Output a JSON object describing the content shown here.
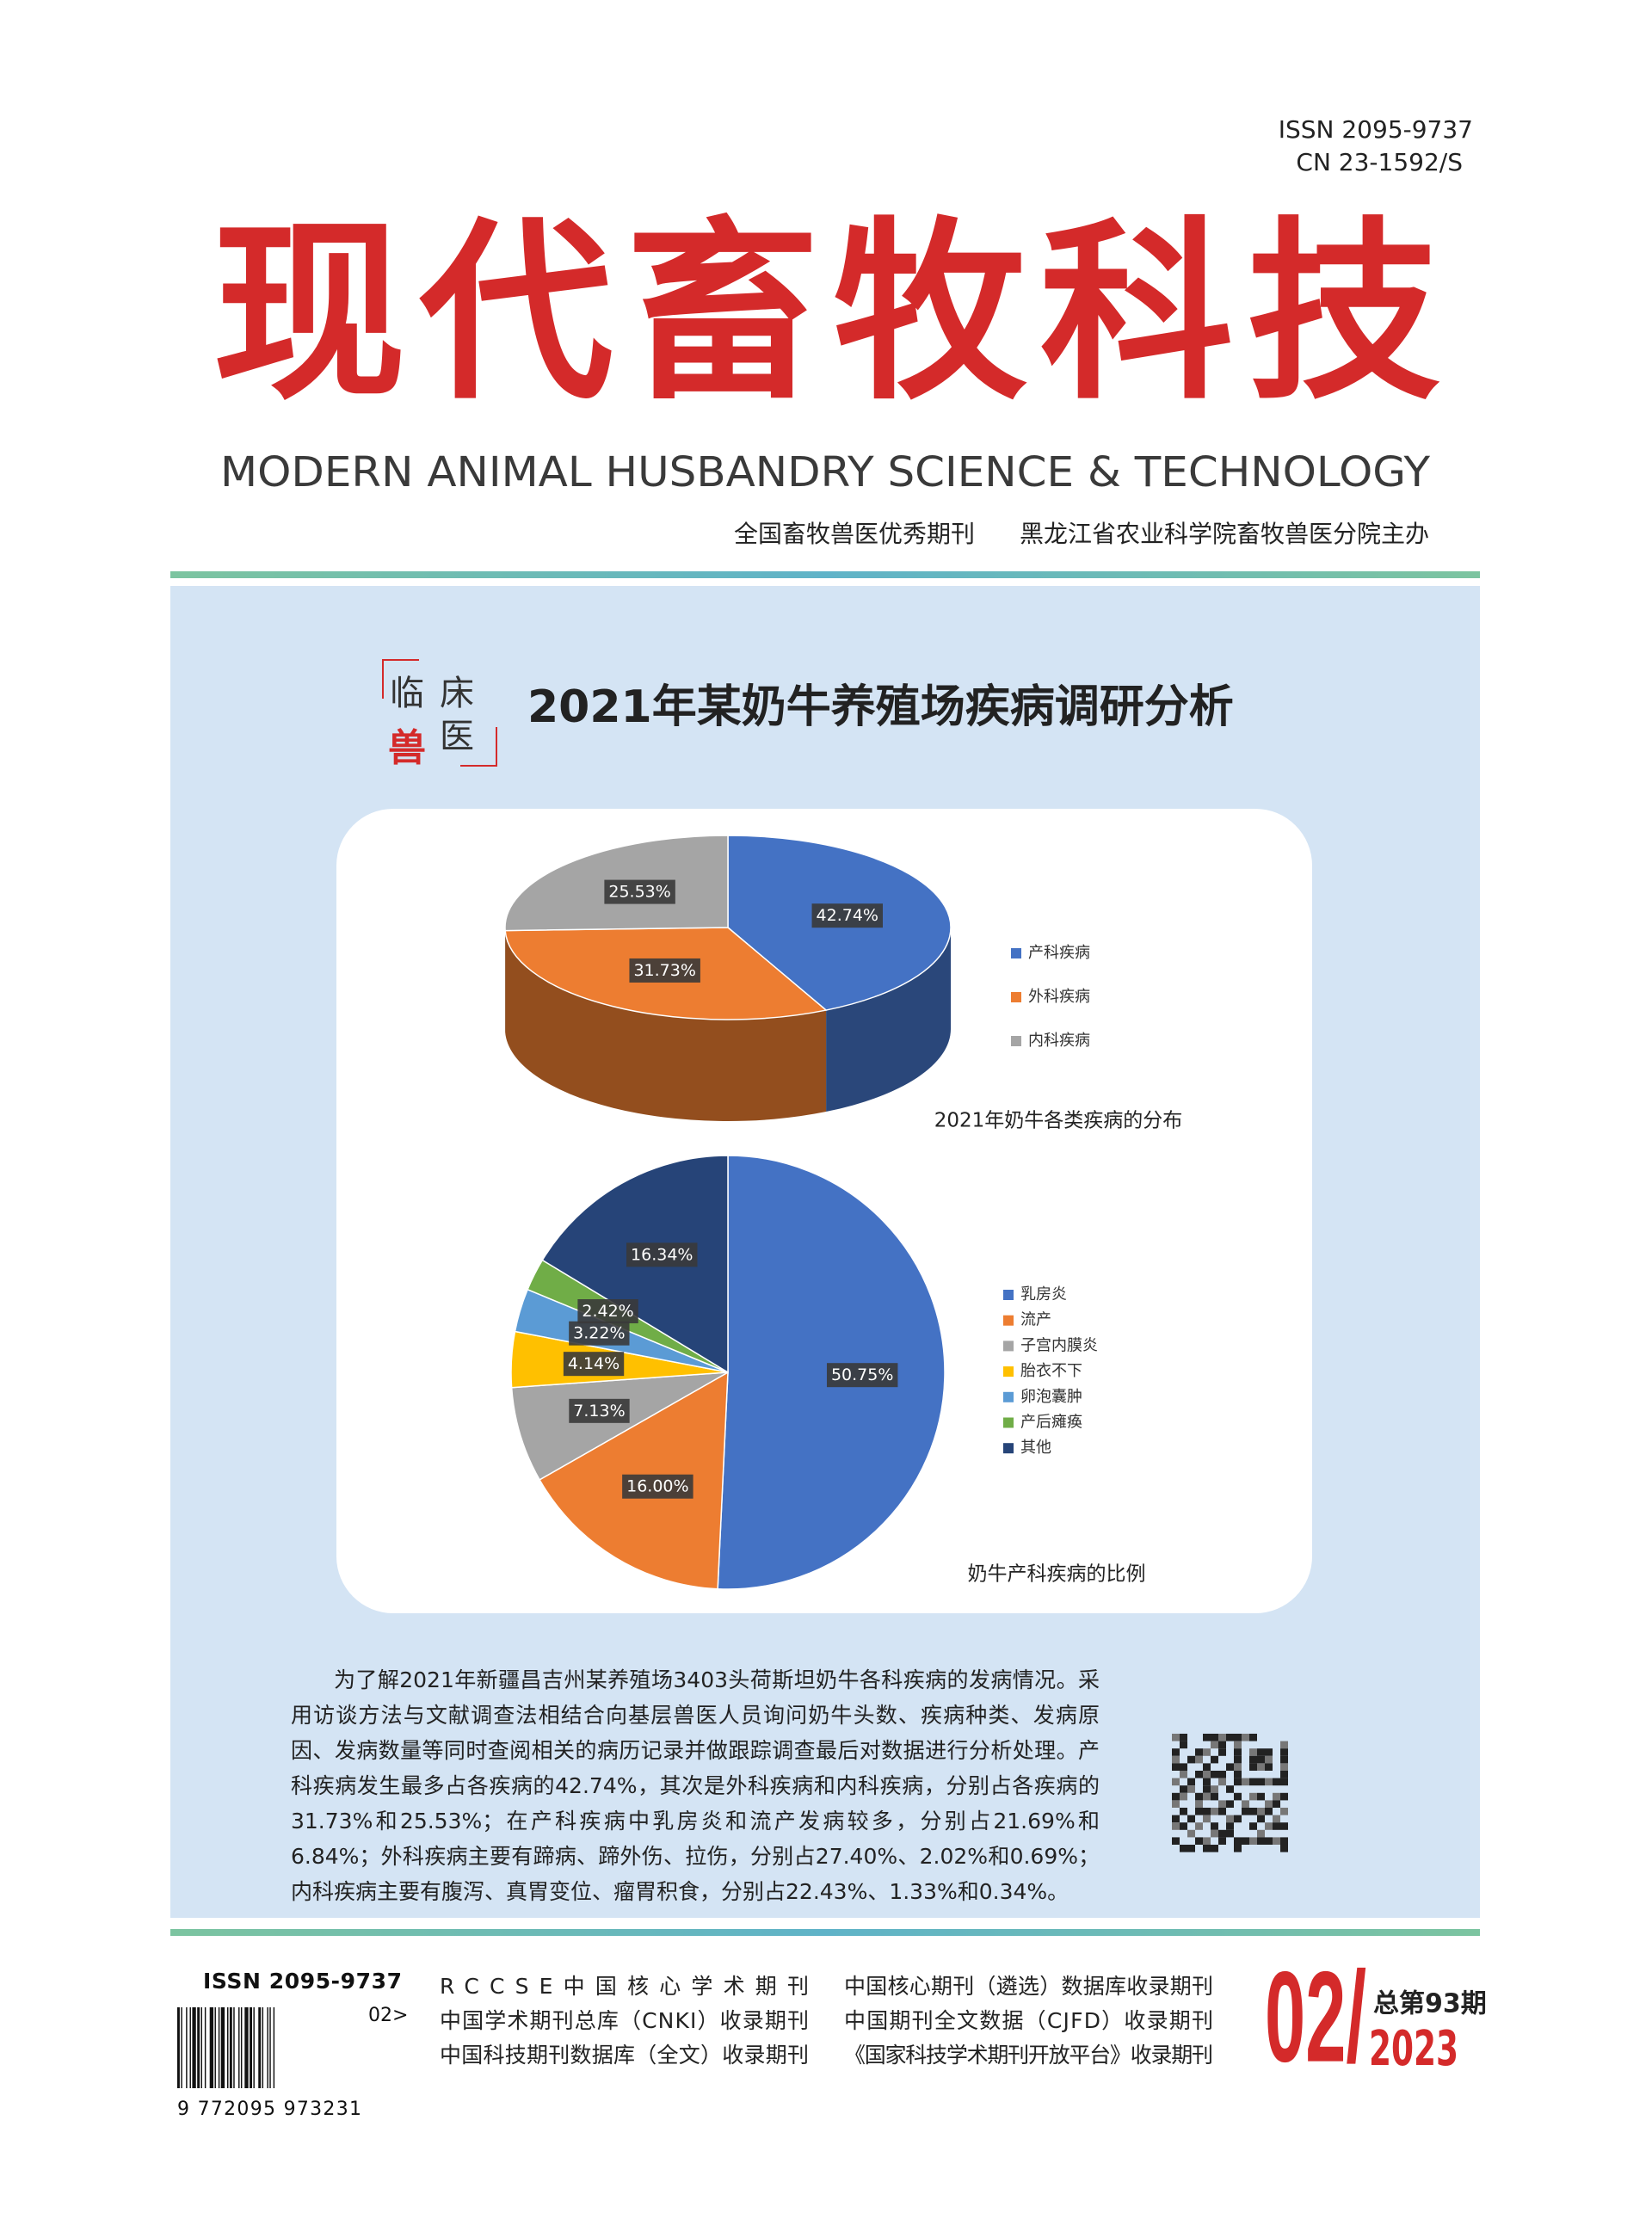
{
  "header": {
    "issn": "ISSN 2095-9737",
    "cn": "CN 23-1592/S",
    "title": "现代畜牧科技",
    "english_title": "MODERN ANIMAL HUSBANDRY SCIENCE & TECHNOLOGY",
    "tagline_1": "全国畜牧兽医优秀期刊",
    "tagline_2": "黑龙江省农业科学院畜牧兽医分院主办"
  },
  "feature": {
    "badge": [
      "临",
      "床",
      "兽",
      "医"
    ],
    "title": "2021年某奶牛养殖场疾病调研分析",
    "abstract": "为了解2021年新疆昌吉州某养殖场3403头荷斯坦奶牛各科疾病的发病情况。采用访谈方法与文献调查法相结合向基层兽医人员询问奶牛头数、疾病种类、发病原因、发病数量等同时查阅相关的病历记录并做跟踪调查最后对数据进行分析处理。产科疾病发生最多占各疾病的42.74%，其次是外科疾病和内科疾病，分别占各疾病的31.73%和25.53%；在产科疾病中乳房炎和流产发病较多，分别占21.69%和6.84%；外科疾病主要有蹄病、蹄外伤、拉伤，分别占27.40%、2.02%和0.69%；内科疾病主要有腹泻、真胃变位、瘤胃积食，分别占22.43%、1.33%和0.34%。"
  },
  "chart_data": [
    {
      "type": "pie",
      "three_d": true,
      "title": "2021年奶牛各类疾病的分布",
      "categories": [
        "产科疾病",
        "外科疾病",
        "内科疾病"
      ],
      "values": [
        42.74,
        31.73,
        25.53
      ],
      "value_labels": [
        "42.74%",
        "31.73%",
        "25.53%"
      ],
      "colors": [
        "#4472c4",
        "#ed7d31",
        "#a5a5a5"
      ],
      "legend": "right"
    },
    {
      "type": "pie",
      "three_d": false,
      "title": "奶牛产科疾病的比例",
      "categories": [
        "乳房炎",
        "流产",
        "子宫内膜炎",
        "胎衣不下",
        "卵泡囊肿",
        "产后瘫痪",
        "其他"
      ],
      "values": [
        50.75,
        16.0,
        7.13,
        4.14,
        3.22,
        2.42,
        16.34
      ],
      "value_labels": [
        "50.75%",
        "16.00%",
        "7.13%",
        "4.14%",
        "3.22%",
        "2.42%",
        "16.34%"
      ],
      "colors": [
        "#4472c4",
        "#ed7d31",
        "#a5a5a5",
        "#ffc000",
        "#5b9bd5",
        "#70ad47",
        "#264478"
      ],
      "legend": "right"
    }
  ],
  "footer": {
    "issn": "ISSN 2095-9737",
    "barcode_addon": "02>",
    "barcode_number": "9 772095 973231",
    "indexing": [
      "RCCSE中国核心学术期刊",
      "中国学术期刊总库（CNKI）收录期刊",
      "中国科技期刊数据库（全文）收录期刊",
      "中国核心期刊（遴选）数据库收录期刊",
      "中国期刊全文数据（CJFD）收录期刊",
      "《国家科技学术期刊开放平台》收录期刊"
    ],
    "issue": "02/",
    "total_issue": "总第93期",
    "year": "2023"
  }
}
